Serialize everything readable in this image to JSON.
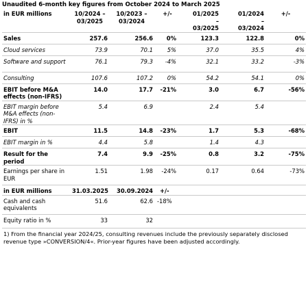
{
  "title": "Unaudited 6-month key figures from October 2024 to March 2025",
  "table1": {
    "header": {
      "label": "in EUR millions",
      "h1_line1": "10/2024 –",
      "h1_line2": "03/2025",
      "h2_line1": "10/2023 –",
      "h2_line2": "03/2024",
      "h3": "+/-",
      "h4_line1": "01/2025",
      "h4_line2": "–",
      "h4_line3": "03/2025",
      "h5_line1": "01/2024",
      "h5_line2": "–",
      "h5_line3": "03/2024",
      "h6": "+/-"
    },
    "rows": [
      {
        "label": "Sales",
        "v1": "257.6",
        "v2": "256.6",
        "d1": "0%",
        "v3": "123.3",
        "v4": "122.8",
        "d2": "0%"
      },
      {
        "label": "Cloud services",
        "v1": "73.9",
        "v2": "70.1",
        "d1": "5%",
        "v3": "37.0",
        "v4": "35.5",
        "d2": "4%"
      },
      {
        "label": "Software and support",
        "v1": "76.1",
        "v2": "79.3",
        "d1": "-4%",
        "v3": "32.1",
        "v4": "33.2",
        "d2": "-3%"
      },
      {
        "label": "Consulting",
        "v1": "107.6",
        "v2": "107.2",
        "d1": "0%",
        "v3": "54.2",
        "v4": "54.1",
        "d2": "0%"
      },
      {
        "label": "EBIT before M&A effects (non-IFRS)",
        "v1": "14.0",
        "v2": "17.7",
        "d1": "-21%",
        "v3": "3.0",
        "v4": "6.7",
        "d2": "-56%"
      },
      {
        "label": "EBIT margin before M&A effects (non-IFRS) in %",
        "v1": "5.4",
        "v2": "6.9",
        "d1": "",
        "v3": "2.4",
        "v4": "5.4",
        "d2": ""
      },
      {
        "label": "EBIT",
        "v1": "11.5",
        "v2": "14.8",
        "d1": "-23%",
        "v3": "1.7",
        "v4": "5.3",
        "d2": "-68%"
      },
      {
        "label": "EBIT margin in %",
        "v1": "4.4",
        "v2": "5.8",
        "d1": "",
        "v3": "1.4",
        "v4": "4.3",
        "d2": ""
      },
      {
        "label": "Result for the period",
        "v1": "7.4",
        "v2": "9.9",
        "d1": "-25%",
        "v3": "0.8",
        "v4": "3.2",
        "d2": "-75%"
      },
      {
        "label": "Earnings per share in EUR",
        "v1": "1.51",
        "v2": "1.98",
        "d1": "-24%",
        "v3": "0.17",
        "v4": "0.64",
        "d2": "-73%"
      }
    ]
  },
  "table2": {
    "header": {
      "label": "in EUR millions",
      "c1": "31.03.2025",
      "c2": "30.09.2024",
      "c3": "+/-"
    },
    "rows": [
      {
        "label": "Cash and cash equivalents",
        "v1": "51.6",
        "v2": "62.6",
        "d": "-18%"
      },
      {
        "label": "Equity ratio in %",
        "v1": "33",
        "v2": "32",
        "d": ""
      }
    ]
  },
  "footnote": "1) From the financial year 2024/25, consulting revenues include the previously separately disclosed revenue type »CONVERSION/4«. Prior-year figures have been adjusted accordingly."
}
